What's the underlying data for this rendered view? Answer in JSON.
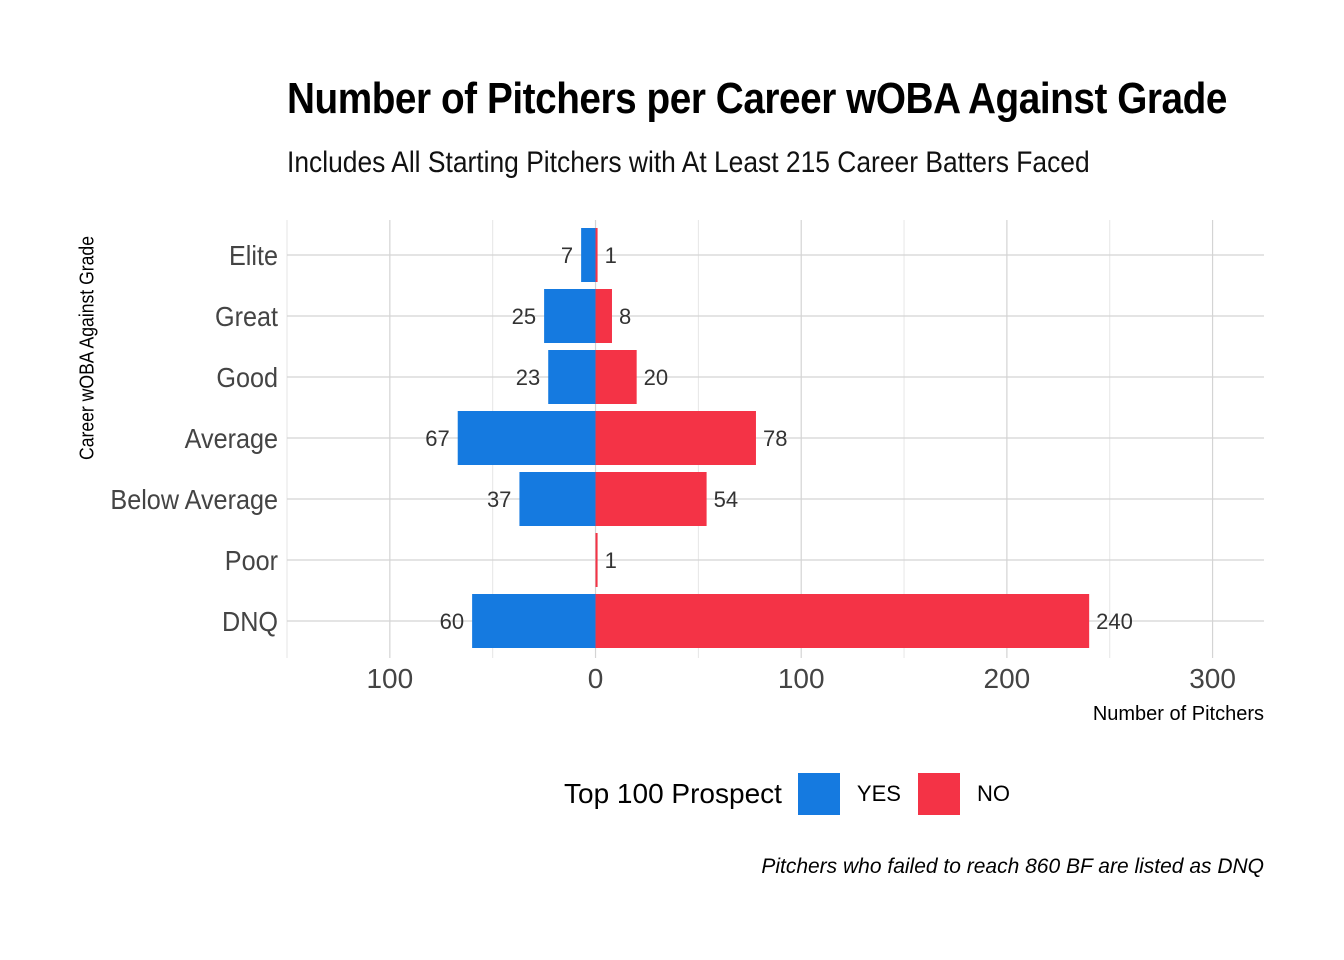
{
  "chart_data": {
    "type": "bar",
    "orientation": "horizontal",
    "layout": "diverging",
    "title": "Number of Pitchers per Career wOBA Against Grade",
    "subtitle": "Includes All Starting Pitchers with At Least 215 Career Batters Faced",
    "xlabel": "Number of Pitchers",
    "ylabel": "Career wOBA Against Grade",
    "caption": "Pitchers who failed to reach 860 BF are listed as DNQ",
    "categories": [
      "Elite",
      "Great",
      "Good",
      "Average",
      "Below Average",
      "Poor",
      "DNQ"
    ],
    "series": [
      {
        "name": "YES",
        "color": "#157ae0",
        "values": [
          7,
          25,
          23,
          67,
          37,
          0,
          60
        ],
        "labels": [
          "7",
          "25",
          "23",
          "67",
          "37",
          "",
          "60"
        ]
      },
      {
        "name": "NO",
        "color": "#f43346",
        "values": [
          1,
          8,
          20,
          78,
          54,
          1,
          240
        ],
        "labels": [
          "1",
          "8",
          "20",
          "78",
          "54",
          "1",
          "240"
        ]
      }
    ],
    "xlim": [
      -150,
      325
    ],
    "xticks": [
      -100,
      0,
      100,
      200,
      300
    ],
    "xtick_labels": [
      "100",
      "0",
      "100",
      "200",
      "300"
    ],
    "grid": true,
    "legend": {
      "title": "Top 100 Prospect",
      "position": "bottom",
      "entries": [
        "YES",
        "NO"
      ]
    }
  }
}
